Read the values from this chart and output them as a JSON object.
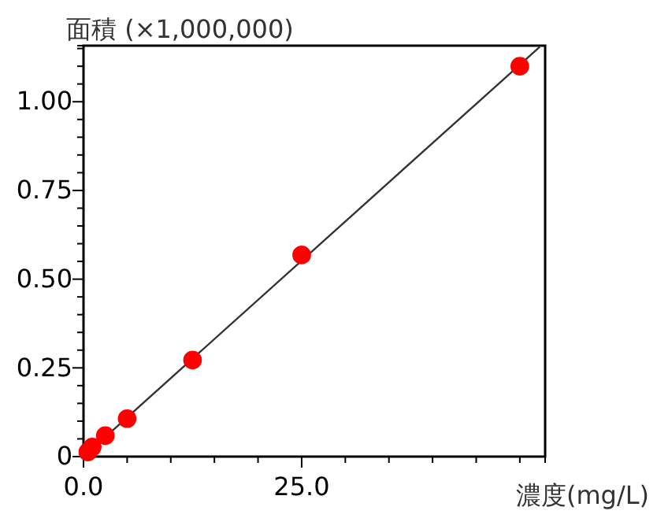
{
  "chart_data": {
    "type": "scatter",
    "xlabel": "濃度(mg/L)",
    "ylabel": "面積 (×1,000,000)",
    "marker": "circle",
    "grid": false,
    "xlim": [
      0,
      52.9
    ],
    "ylim": [
      0,
      1.158
    ],
    "xticks": [
      {
        "value": 0,
        "label": "0.0"
      },
      {
        "value": 5,
        "label": null
      },
      {
        "value": 10,
        "label": null
      },
      {
        "value": 15,
        "label": null
      },
      {
        "value": 20,
        "label": null
      },
      {
        "value": 25,
        "label": "25.0"
      },
      {
        "value": 30,
        "label": null
      },
      {
        "value": 35,
        "label": null
      },
      {
        "value": 40,
        "label": null
      },
      {
        "value": 45,
        "label": null
      },
      {
        "value": 50,
        "label": null
      }
    ],
    "yticks": [
      0,
      {
        "value": 0.05,
        "label": null
      },
      {
        "value": 0.1,
        "label": null
      },
      {
        "value": 0.15,
        "label": null
      },
      {
        "value": 0.2,
        "label": null
      },
      {
        "value": 0.25,
        "label": "0.25"
      },
      {
        "value": 0.3,
        "label": null
      },
      {
        "value": 0.35,
        "label": null
      },
      {
        "value": 0.4,
        "label": null
      },
      {
        "value": 0.45,
        "label": null
      },
      {
        "value": 0.5,
        "label": "0.50"
      },
      {
        "value": 0.55,
        "label": null
      },
      {
        "value": 0.6,
        "label": null
      },
      {
        "value": 0.65,
        "label": null
      },
      {
        "value": 0.7,
        "label": null
      },
      {
        "value": 0.75,
        "label": "0.75"
      },
      {
        "value": 0.8,
        "label": null
      },
      {
        "value": 0.85,
        "label": null
      },
      {
        "value": 0.9,
        "label": null
      },
      {
        "value": 0.95,
        "label": null
      },
      {
        "value": 1,
        "label": "1.00"
      },
      {
        "value": 1.05,
        "label": null
      },
      {
        "value": 1.1,
        "label": null
      },
      {
        "value": 1.15,
        "label": null
      }
    ],
    "series": [
      {
        "type": "line",
        "color": "#333333",
        "x": [
          0,
          52.3
        ],
        "values": [
          0,
          1.155
        ],
        "marker": "none",
        "line_style": "solid"
      },
      {
        "color": "#ff0000",
        "x": [
          0.5,
          1,
          2.5,
          5,
          12.5,
          25,
          50
        ],
        "values": [
          0.013,
          0.027,
          0.059,
          0.107,
          0.272,
          0.568,
          1.1
        ]
      }
    ]
  }
}
